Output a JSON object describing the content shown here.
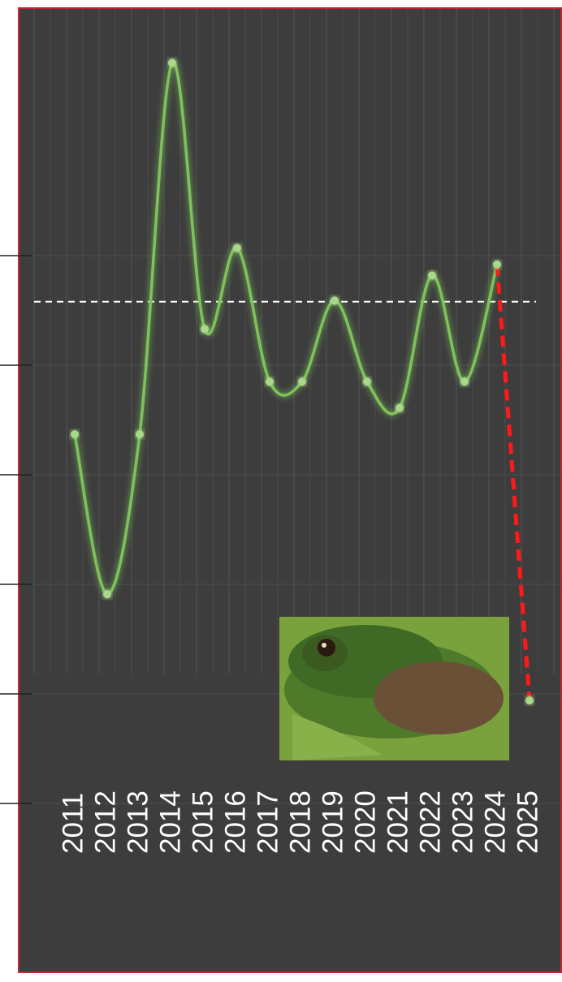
{
  "chart_data": {
    "type": "line",
    "x": [
      2011,
      2012,
      2013,
      2014,
      2015,
      2016,
      2017,
      2018,
      2019,
      2020,
      2021,
      2022,
      2023,
      2024,
      2025
    ],
    "values": [
      3.37,
      1.91,
      3.37,
      6.76,
      4.33,
      5.07,
      3.85,
      3.85,
      4.59,
      3.85,
      3.61,
      4.82,
      3.85,
      4.92,
      0.94
    ],
    "color": "#7dc35a",
    "last_segment_color": "#ff1a1a",
    "reference_line": 4.58,
    "xlim": [
      2009.25,
      2026.0
    ],
    "ylim": [
      -1.63,
      7.26
    ],
    "yticks": [
      0,
      1,
      2,
      3,
      4,
      5
    ],
    "grid": true
  }
}
